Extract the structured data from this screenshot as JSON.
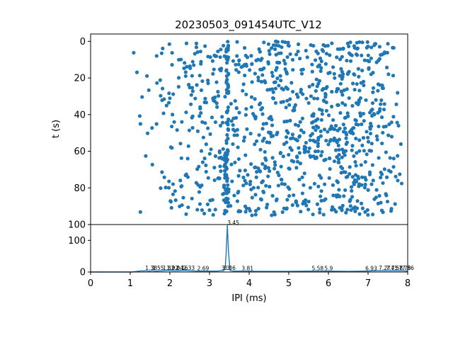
{
  "title": "20230503_091454UTC_V12",
  "chart_data": [
    {
      "type": "scatter",
      "ylabel": "t (s)",
      "xlim": [
        0,
        8
      ],
      "ylim": [
        100,
        -4
      ],
      "y_inverted": true,
      "yticks": [
        0,
        20,
        40,
        60,
        80,
        100
      ],
      "marker_color": "#1f77b4",
      "grid": false,
      "x_range_of_points": [
        1.05,
        8.0
      ],
      "y_range_of_points": [
        0,
        95
      ],
      "notable_clusters": [
        {
          "x": 3.45,
          "y_range": [
            0,
            95
          ]
        },
        {
          "x": 3.4,
          "y_range": [
            60,
            75
          ]
        }
      ],
      "approx_point_count": 1000
    },
    {
      "type": "line",
      "xlabel": "IPI (ms)",
      "xlim": [
        0,
        8
      ],
      "ylim": [
        0,
        150
      ],
      "xticks": [
        0,
        1,
        2,
        3,
        4,
        5,
        6,
        7,
        8
      ],
      "yticks": [
        0,
        100
      ],
      "line_color": "#1f77b4",
      "x": [
        0,
        1.05,
        1.3,
        1.34,
        1.38,
        1.5,
        1.55,
        1.65,
        1.82,
        1.92,
        2.0,
        2.1,
        2.2,
        2.3,
        2.4,
        2.5,
        2.69,
        3.0,
        3.2,
        3.3,
        3.36,
        3.4,
        3.42,
        3.45,
        3.48,
        3.52,
        3.6,
        3.81,
        4.2,
        5.0,
        5.58,
        5.9,
        6.5,
        6.93,
        7.2,
        7.5,
        7.7,
        7.86,
        8.0
      ],
      "y": [
        0,
        0,
        4,
        3,
        4,
        3,
        4,
        3,
        4,
        5,
        5,
        4,
        4,
        5,
        5,
        4,
        3,
        3,
        3,
        4,
        4,
        20,
        60,
        148,
        60,
        5,
        3,
        3,
        2,
        2,
        3,
        3,
        2,
        3,
        4,
        4,
        4,
        4,
        3
      ],
      "peak_labels": [
        {
          "x": 1.38,
          "label": "1.38"
        },
        {
          "x": 1.55,
          "label": "1.55"
        },
        {
          "x": 1.82,
          "label": "1.82"
        },
        {
          "x": 1.92,
          "label": "1.92"
        },
        {
          "x": 2.04,
          "label": "2.04"
        },
        {
          "x": 2.16,
          "label": "2.16"
        },
        {
          "x": 2.33,
          "label": "2.33"
        },
        {
          "x": 2.69,
          "label": "2.69"
        },
        {
          "x": 3.3,
          "label": "3.3"
        },
        {
          "x": 3.36,
          "label": "3.36"
        },
        {
          "x": 3.45,
          "label": "3.45"
        },
        {
          "x": 3.81,
          "label": "3.81"
        },
        {
          "x": 5.58,
          "label": "5.58"
        },
        {
          "x": 5.9,
          "label": "5.9"
        },
        {
          "x": 6.93,
          "label": "6.93"
        },
        {
          "x": 7.27,
          "label": "7.27"
        },
        {
          "x": 7.45,
          "label": "7.45"
        },
        {
          "x": 7.58,
          "label": "7.58"
        },
        {
          "x": 7.78,
          "label": "7.78"
        },
        {
          "x": 7.86,
          "label": "7.86"
        }
      ]
    }
  ]
}
